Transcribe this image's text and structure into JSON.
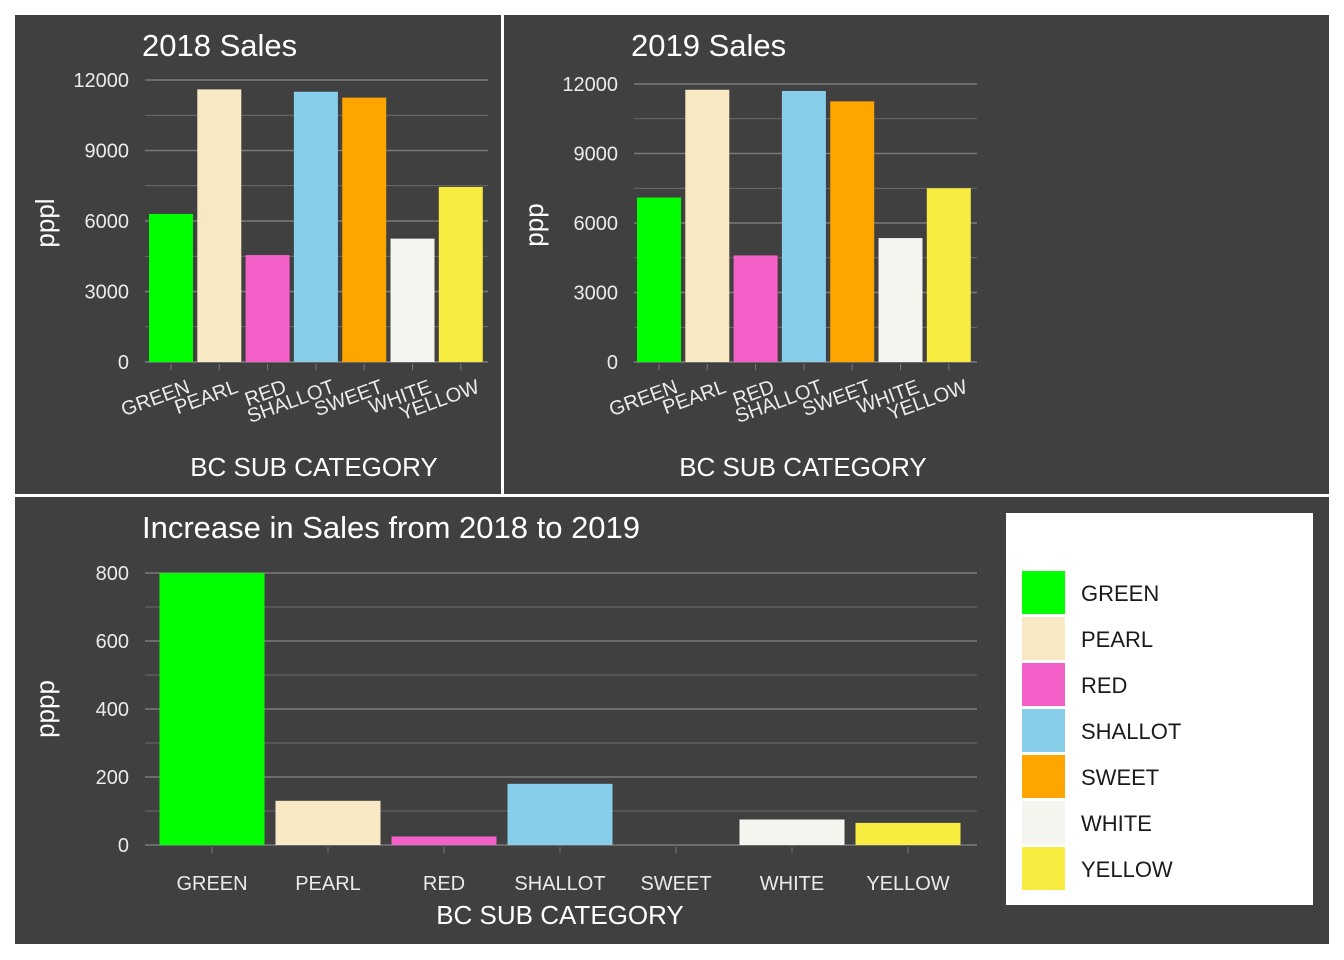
{
  "colors": {
    "panel_bg": "#404040",
    "gridline": "#7a7a7a",
    "text": "#ffffff",
    "legend_bg": "#ffffff",
    "legend_text": "#1a1a1a"
  },
  "legend": {
    "items": [
      {
        "label": "GREEN",
        "color": "#00ff00"
      },
      {
        "label": "PEARL",
        "color": "#f8e9c4"
      },
      {
        "label": "RED",
        "color": "#f361c8"
      },
      {
        "label": "SHALLOT",
        "color": "#87ceeb"
      },
      {
        "label": "SWEET",
        "color": "#ffa500"
      },
      {
        "label": "WHITE",
        "color": "#f5f5f0"
      },
      {
        "label": "YELLOW",
        "color": "#f7ec3f"
      }
    ]
  },
  "chart_data": [
    {
      "type": "bar",
      "title": "2018 Sales",
      "xlabel": "BC SUB CATEGORY",
      "ylabel": "pppl",
      "categories": [
        "GREEN",
        "PEARL",
        "RED",
        "SHALLOT",
        "SWEET",
        "WHITE",
        "YELLOW"
      ],
      "values": [
        6300,
        11600,
        4550,
        11500,
        11250,
        5250,
        7450
      ],
      "yticks": [
        0,
        3000,
        6000,
        9000,
        12000
      ],
      "ylim": [
        0,
        12000
      ],
      "xtick_rotation": "angled",
      "grid": true
    },
    {
      "type": "bar",
      "title": "2019 Sales",
      "xlabel": "BC SUB CATEGORY",
      "ylabel": "ppp",
      "categories": [
        "GREEN",
        "PEARL",
        "RED",
        "SHALLOT",
        "SWEET",
        "WHITE",
        "YELLOW"
      ],
      "values": [
        7100,
        11750,
        4600,
        11700,
        11250,
        5350,
        7500
      ],
      "yticks": [
        0,
        3000,
        6000,
        9000,
        12000
      ],
      "ylim": [
        0,
        12000
      ],
      "xtick_rotation": "angled",
      "grid": true
    },
    {
      "type": "bar",
      "title": "Increase in Sales from 2018 to 2019",
      "xlabel": "BC SUB CATEGORY",
      "ylabel": "pppp",
      "categories": [
        "GREEN",
        "PEARL",
        "RED",
        "SHALLOT",
        "SWEET",
        "WHITE",
        "YELLOW"
      ],
      "values": [
        800,
        130,
        25,
        180,
        0,
        75,
        65
      ],
      "yticks": [
        0,
        200,
        400,
        600,
        800
      ],
      "ylim": [
        0,
        800
      ],
      "legend_position": "right",
      "grid": true
    }
  ]
}
